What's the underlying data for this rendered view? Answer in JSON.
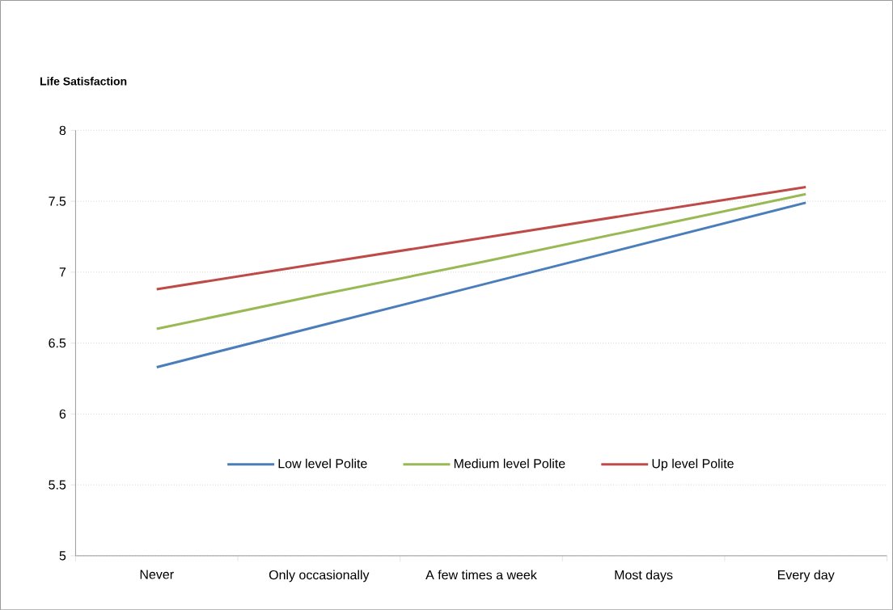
{
  "chart_data": {
    "type": "line",
    "ylabel": "Life Satisfaction",
    "categories": [
      "Never",
      "Only occasionally",
      "A few times a week",
      "Most days",
      "Every day"
    ],
    "series": [
      {
        "name": "Low level Polite",
        "color": "#4a7ebb",
        "values": [
          6.33,
          6.62,
          6.91,
          7.2,
          7.49
        ]
      },
      {
        "name": "Medium level Polite",
        "color": "#98b954",
        "values": [
          6.6,
          6.84,
          7.07,
          7.31,
          7.55
        ]
      },
      {
        "name": "Up level Polite",
        "color": "#be4b48",
        "values": [
          6.88,
          7.06,
          7.24,
          7.42,
          7.6
        ]
      }
    ],
    "ylim": [
      5,
      8
    ],
    "yticks": [
      5,
      5.5,
      6,
      6.5,
      7,
      7.5,
      8
    ],
    "grid": "y",
    "legend": "bottom",
    "marker": "none",
    "line_style": "solid"
  }
}
